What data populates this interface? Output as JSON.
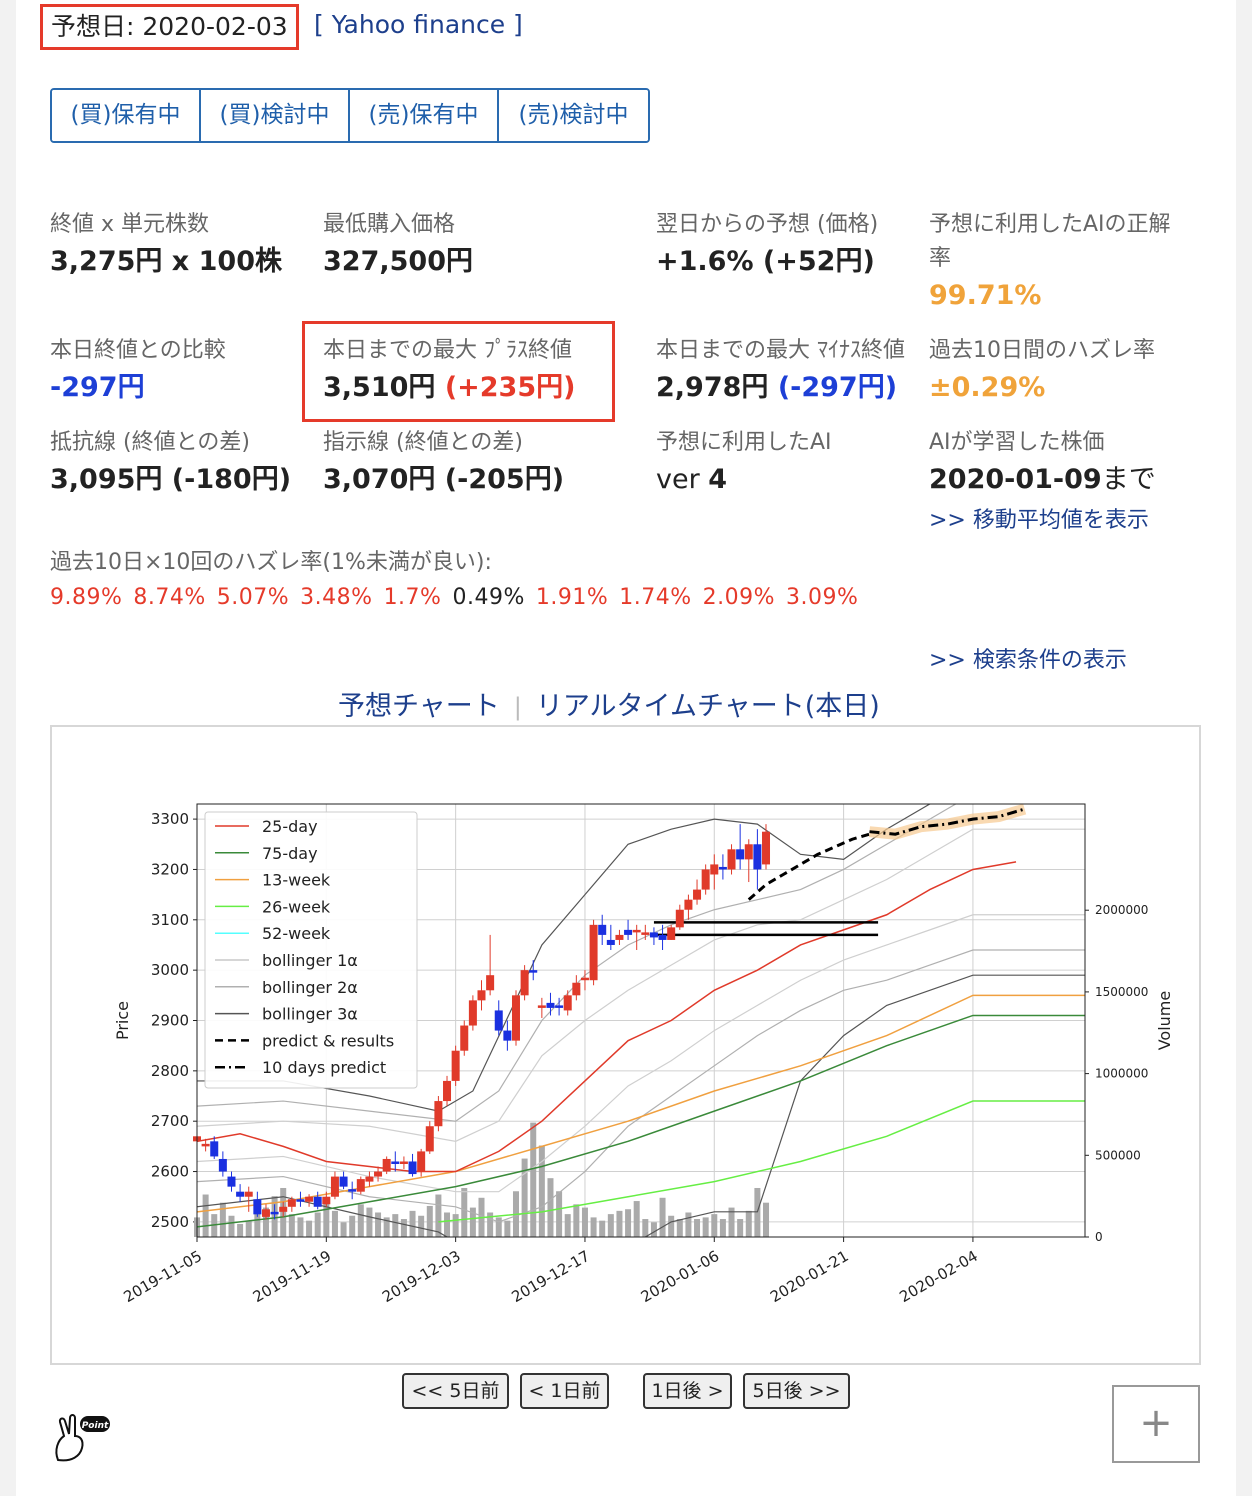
{
  "header": {
    "prediction_date": "予想日: 2020-02-03",
    "yahoo_link": "[ Yahoo finance ]"
  },
  "segments": [
    "(買)保有中",
    "(買)検討中",
    "(売)保有中",
    "(売)検討中"
  ],
  "stats": {
    "close_label": "終値 x 単元株数",
    "close_value": "3,275円 x 100株",
    "min_buy_label": "最低購入価格",
    "min_buy_value": "327,500円",
    "forecast_label": "翌日からの予想 (価格)",
    "forecast_value": "+1.6% (+52円)",
    "ai_accuracy_label": "予想に利用したAIの正解率",
    "ai_accuracy_value": "99.71%",
    "today_compare_label": "本日終値との比較",
    "today_compare_value": "-297円",
    "max_plus_label": "本日までの最大 ﾌﾟﾗｽ終値",
    "max_plus_value": "3,510円",
    "max_plus_diff": "(+235円)",
    "max_minus_label": "本日までの最大 ﾏｲﾅｽ終値",
    "max_minus_value": "2,978円",
    "max_minus_diff": "(-297円)",
    "miss_rate_label": "過去10日間のハズレ率",
    "miss_rate_value": "±0.29%",
    "resistance_label": "抵抗線 (終値との差)",
    "resistance_value": "3,095円 (-180円)",
    "support_label": "指示線 (終値との差)",
    "support_value": "3,070円 (-205円)",
    "ai_ver_label": "予想に利用したAI",
    "ai_ver_prefix": "ver ",
    "ai_ver_value": "4",
    "learned_label": "AIが学習した株価",
    "learned_value": "2020-01-09",
    "learned_suffix": "まで",
    "moving_avg_link": ">> 移動平均値を表示"
  },
  "miss_rates": {
    "label": "過去10日×10回のハズレ率(1%未満が良い):",
    "values": [
      {
        "text": "9.89%",
        "color": "#e53a2a"
      },
      {
        "text": "8.74%",
        "color": "#e53a2a"
      },
      {
        "text": "5.07%",
        "color": "#e53a2a"
      },
      {
        "text": "3.48%",
        "color": "#e53a2a"
      },
      {
        "text": "1.7%",
        "color": "#e53a2a"
      },
      {
        "text": "0.49%",
        "color": "#222222"
      },
      {
        "text": "1.91%",
        "color": "#e53a2a"
      },
      {
        "text": "1.74%",
        "color": "#e53a2a"
      },
      {
        "text": "2.09%",
        "color": "#e53a2a"
      },
      {
        "text": "3.09%",
        "color": "#e53a2a"
      }
    ]
  },
  "search_link": ">> 検索条件の表示",
  "chart_tabs": {
    "predict": "予想チャート",
    "sep": "|",
    "realtime": "リアルタイムチャート(本日)"
  },
  "chart_data": {
    "type": "candlestick",
    "ylabel": "Price",
    "y2label": "Volume",
    "ylim": [
      2470,
      3330
    ],
    "yticks": [
      2500,
      2600,
      2700,
      2800,
      2900,
      3000,
      3100,
      3200,
      3300
    ],
    "y2ticks": [
      0,
      500000,
      1000000,
      1500000,
      2000000
    ],
    "y2max": 2650000,
    "xlim": [
      0,
      103
    ],
    "xticks": [
      {
        "i": 0,
        "label": "2019-11-05"
      },
      {
        "i": 15,
        "label": "2019-11-19"
      },
      {
        "i": 30,
        "label": "2019-12-03"
      },
      {
        "i": 45,
        "label": "2019-12-17"
      },
      {
        "i": 60,
        "label": "2020-01-06"
      },
      {
        "i": 75,
        "label": "2020-01-21"
      },
      {
        "i": 90,
        "label": "2020-02-04"
      }
    ],
    "legend": [
      {
        "name": "25-day",
        "color": "#e03a2a",
        "dash": ""
      },
      {
        "name": "75-day",
        "color": "#3a8a3a",
        "dash": ""
      },
      {
        "name": "13-week",
        "color": "#f0a040",
        "dash": ""
      },
      {
        "name": "26-week",
        "color": "#66ee44",
        "dash": ""
      },
      {
        "name": "52-week",
        "color": "#55ffff",
        "dash": ""
      },
      {
        "name": "bollinger 1α",
        "color": "#c8c8c8",
        "dash": ""
      },
      {
        "name": "bollinger 2α",
        "color": "#b0b0b0",
        "dash": ""
      },
      {
        "name": "bollinger 3α",
        "color": "#555555",
        "dash": ""
      },
      {
        "name": "predict & results",
        "color": "#000000",
        "dash": "8,5"
      },
      {
        "name": "10 days predict",
        "color": "#000000",
        "dash": "10,4,2,4"
      }
    ],
    "candles": [
      [
        2660,
        2680,
        2650,
        2670
      ],
      [
        2650,
        2665,
        2640,
        2655
      ],
      [
        2660,
        2670,
        2625,
        2630
      ],
      [
        2625,
        2640,
        2590,
        2600
      ],
      [
        2590,
        2600,
        2560,
        2570
      ],
      [
        2560,
        2575,
        2540,
        2550
      ],
      [
        2550,
        2570,
        2520,
        2560
      ],
      [
        2545,
        2560,
        2510,
        2515
      ],
      [
        2510,
        2535,
        2505,
        2525
      ],
      [
        2520,
        2535,
        2505,
        2515
      ],
      [
        2520,
        2540,
        2510,
        2530
      ],
      [
        2530,
        2550,
        2520,
        2545
      ],
      [
        2545,
        2560,
        2530,
        2540
      ],
      [
        2540,
        2555,
        2530,
        2550
      ],
      [
        2550,
        2560,
        2525,
        2530
      ],
      [
        2535,
        2560,
        2530,
        2550
      ],
      [
        2550,
        2600,
        2545,
        2590
      ],
      [
        2590,
        2600,
        2565,
        2570
      ],
      [
        2565,
        2580,
        2545,
        2560
      ],
      [
        2560,
        2590,
        2555,
        2585
      ],
      [
        2580,
        2600,
        2570,
        2590
      ],
      [
        2590,
        2610,
        2580,
        2600
      ],
      [
        2600,
        2630,
        2595,
        2625
      ],
      [
        2620,
        2640,
        2600,
        2615
      ],
      [
        2615,
        2630,
        2605,
        2620
      ],
      [
        2620,
        2635,
        2590,
        2595
      ],
      [
        2600,
        2645,
        2590,
        2640
      ],
      [
        2640,
        2700,
        2635,
        2690
      ],
      [
        2690,
        2750,
        2680,
        2740
      ],
      [
        2740,
        2790,
        2730,
        2780
      ],
      [
        2780,
        2850,
        2770,
        2840
      ],
      [
        2840,
        2900,
        2830,
        2890
      ],
      [
        2890,
        2950,
        2880,
        2940
      ],
      [
        2940,
        2980,
        2920,
        2960
      ],
      [
        2960,
        3070,
        2950,
        2990
      ],
      [
        2920,
        2940,
        2870,
        2880
      ],
      [
        2880,
        2900,
        2840,
        2860
      ],
      [
        2860,
        2960,
        2850,
        2950
      ],
      [
        2950,
        3010,
        2940,
        3000
      ],
      [
        3000,
        3020,
        2980,
        2995
      ],
      [
        2925,
        2945,
        2905,
        2930
      ],
      [
        2935,
        2955,
        2910,
        2925
      ],
      [
        2930,
        2945,
        2910,
        2925
      ],
      [
        2920,
        2960,
        2910,
        2950
      ],
      [
        2950,
        2990,
        2940,
        2975
      ],
      [
        2980,
        3000,
        2960,
        2985
      ],
      [
        2980,
        3100,
        2970,
        3090
      ],
      [
        3090,
        3110,
        3050,
        3070
      ],
      [
        3060,
        3090,
        3040,
        3050
      ],
      [
        3060,
        3080,
        3050,
        3070
      ],
      [
        3080,
        3100,
        3060,
        3070
      ],
      [
        3075,
        3090,
        3040,
        3080
      ],
      [
        3070,
        3090,
        3060,
        3075
      ],
      [
        3075,
        3085,
        3050,
        3065
      ],
      [
        3070,
        3090,
        3040,
        3060
      ],
      [
        3060,
        3090,
        3060,
        3085
      ],
      [
        3085,
        3130,
        3080,
        3120
      ],
      [
        3120,
        3150,
        3100,
        3140
      ],
      [
        3140,
        3180,
        3130,
        3160
      ],
      [
        3160,
        3210,
        3150,
        3200
      ],
      [
        3190,
        3230,
        3160,
        3210
      ],
      [
        3205,
        3230,
        3180,
        3200
      ],
      [
        3200,
        3250,
        3190,
        3240
      ],
      [
        3240,
        3290,
        3200,
        3220
      ],
      [
        3220,
        3260,
        3175,
        3250
      ],
      [
        3250,
        3280,
        3160,
        3200
      ],
      [
        3210,
        3290,
        3200,
        3275
      ]
    ],
    "candle_x": [
      0,
      1,
      2,
      3,
      4,
      5,
      6,
      7,
      8,
      9,
      10,
      11,
      12,
      13,
      14,
      15,
      16,
      17,
      18,
      19,
      20,
      21,
      22,
      23,
      24,
      25,
      26,
      27,
      28,
      29,
      30,
      31,
      32,
      33,
      34,
      35,
      36,
      37,
      38,
      39,
      40,
      41,
      42,
      43,
      44,
      45,
      46,
      47,
      48,
      49,
      50,
      51,
      52,
      53,
      54,
      55,
      56,
      57,
      58,
      59,
      60,
      61,
      62,
      63,
      64,
      65,
      66
    ],
    "volumes": [
      120000,
      260000,
      140000,
      210000,
      130000,
      80000,
      100000,
      150000,
      180000,
      250000,
      300000,
      140000,
      120000,
      100000,
      150000,
      240000,
      160000,
      90000,
      130000,
      200000,
      180000,
      150000,
      120000,
      140000,
      110000,
      160000,
      130000,
      190000,
      260000,
      150000,
      140000,
      300000,
      180000,
      240000,
      150000,
      120000,
      100000,
      280000,
      480000,
      700000,
      560000,
      360000,
      280000,
      140000,
      200000,
      180000,
      120000,
      100000,
      140000,
      160000,
      170000,
      220000,
      110000,
      90000,
      240000,
      130000,
      110000,
      150000,
      110000,
      120000,
      140000,
      110000,
      180000,
      110000,
      160000,
      300000,
      210000
    ],
    "series": {
      "ma25": [
        [
          0,
          2660
        ],
        [
          5,
          2675
        ],
        [
          10,
          2650
        ],
        [
          15,
          2620
        ],
        [
          20,
          2610
        ],
        [
          25,
          2600
        ],
        [
          30,
          2600
        ],
        [
          35,
          2640
        ],
        [
          40,
          2700
        ],
        [
          45,
          2780
        ],
        [
          50,
          2860
        ],
        [
          55,
          2900
        ],
        [
          60,
          2960
        ],
        [
          65,
          3000
        ],
        [
          70,
          3050
        ],
        [
          75,
          3080
        ],
        [
          80,
          3110
        ],
        [
          85,
          3160
        ],
        [
          90,
          3200
        ],
        [
          95,
          3215
        ]
      ],
      "ma75": [
        [
          0,
          2490
        ],
        [
          10,
          2510
        ],
        [
          20,
          2540
        ],
        [
          30,
          2570
        ],
        [
          40,
          2610
        ],
        [
          50,
          2660
        ],
        [
          60,
          2720
        ],
        [
          70,
          2780
        ],
        [
          80,
          2850
        ],
        [
          90,
          2910
        ],
        [
          103,
          2910
        ]
      ],
      "wk13": [
        [
          0,
          2520
        ],
        [
          10,
          2540
        ],
        [
          20,
          2570
        ],
        [
          30,
          2600
        ],
        [
          40,
          2650
        ],
        [
          50,
          2700
        ],
        [
          60,
          2760
        ],
        [
          70,
          2810
        ],
        [
          80,
          2870
        ],
        [
          90,
          2950
        ],
        [
          103,
          2950
        ]
      ],
      "wk26": [
        [
          28,
          2500
        ],
        [
          40,
          2520
        ],
        [
          50,
          2550
        ],
        [
          60,
          2580
        ],
        [
          70,
          2620
        ],
        [
          80,
          2670
        ],
        [
          90,
          2740
        ],
        [
          103,
          2740
        ]
      ],
      "boll1_up": [
        [
          0,
          2690
        ],
        [
          10,
          2700
        ],
        [
          20,
          2690
        ],
        [
          30,
          2660
        ],
        [
          35,
          2700
        ],
        [
          40,
          2830
        ],
        [
          45,
          2900
        ],
        [
          50,
          2960
        ],
        [
          55,
          3010
        ],
        [
          60,
          3060
        ],
        [
          65,
          3090
        ],
        [
          70,
          3100
        ],
        [
          75,
          3140
        ],
        [
          80,
          3180
        ],
        [
          85,
          3230
        ],
        [
          90,
          3280
        ],
        [
          103,
          3280
        ]
      ],
      "boll1_lo": [
        [
          0,
          2620
        ],
        [
          10,
          2630
        ],
        [
          20,
          2590
        ],
        [
          30,
          2560
        ],
        [
          35,
          2560
        ],
        [
          40,
          2620
        ],
        [
          45,
          2690
        ],
        [
          50,
          2770
        ],
        [
          55,
          2820
        ],
        [
          60,
          2880
        ],
        [
          65,
          2930
        ],
        [
          70,
          2980
        ],
        [
          75,
          3020
        ],
        [
          80,
          3050
        ],
        [
          85,
          3080
        ],
        [
          90,
          3110
        ],
        [
          103,
          3110
        ]
      ],
      "boll2_up": [
        [
          0,
          2730
        ],
        [
          10,
          2740
        ],
        [
          20,
          2720
        ],
        [
          30,
          2700
        ],
        [
          35,
          2760
        ],
        [
          40,
          2900
        ],
        [
          45,
          2990
        ],
        [
          50,
          3050
        ],
        [
          55,
          3090
        ],
        [
          60,
          3120
        ],
        [
          65,
          3140
        ],
        [
          70,
          3160
        ],
        [
          75,
          3200
        ],
        [
          80,
          3250
        ],
        [
          85,
          3300
        ],
        [
          90,
          3350
        ],
        [
          103,
          3350
        ]
      ],
      "boll2_lo": [
        [
          0,
          2580
        ],
        [
          10,
          2590
        ],
        [
          20,
          2550
        ],
        [
          30,
          2530
        ],
        [
          35,
          2500
        ],
        [
          40,
          2530
        ],
        [
          45,
          2600
        ],
        [
          50,
          2690
        ],
        [
          55,
          2750
        ],
        [
          60,
          2810
        ],
        [
          65,
          2870
        ],
        [
          70,
          2920
        ],
        [
          75,
          2960
        ],
        [
          80,
          2980
        ],
        [
          85,
          3010
        ],
        [
          90,
          3040
        ],
        [
          103,
          3040
        ]
      ],
      "boll3_up": [
        [
          0,
          2780
        ],
        [
          10,
          2780
        ],
        [
          20,
          2750
        ],
        [
          28,
          2720
        ],
        [
          32,
          2760
        ],
        [
          40,
          3050
        ],
        [
          45,
          3150
        ],
        [
          50,
          3250
        ],
        [
          55,
          3280
        ],
        [
          60,
          3300
        ],
        [
          65,
          3290
        ],
        [
          70,
          3230
        ],
        [
          75,
          3220
        ],
        [
          80,
          3280
        ],
        [
          85,
          3330
        ],
        [
          90,
          3360
        ],
        [
          103,
          3360
        ]
      ],
      "boll3_lo": [
        [
          0,
          2530
        ],
        [
          10,
          2550
        ],
        [
          20,
          2510
        ],
        [
          28,
          2480
        ],
        [
          32,
          2440
        ],
        [
          40,
          2380
        ],
        [
          45,
          2400
        ],
        [
          50,
          2450
        ],
        [
          55,
          2500
        ],
        [
          60,
          2520
        ],
        [
          65,
          2520
        ],
        [
          70,
          2780
        ],
        [
          75,
          2870
        ],
        [
          80,
          2930
        ],
        [
          85,
          2960
        ],
        [
          90,
          2990
        ],
        [
          103,
          2990
        ]
      ],
      "predict_results": [
        [
          64,
          3140
        ],
        [
          66,
          3170
        ],
        [
          68,
          3190
        ],
        [
          70,
          3210
        ],
        [
          72,
          3230
        ],
        [
          74,
          3245
        ],
        [
          76,
          3260
        ],
        [
          78,
          3270
        ]
      ],
      "ten_day_predict": [
        [
          78,
          3275
        ],
        [
          81,
          3270
        ],
        [
          84,
          3285
        ],
        [
          87,
          3290
        ],
        [
          90,
          3300
        ],
        [
          93,
          3305
        ],
        [
          96,
          3320
        ]
      ]
    },
    "resistance_line": {
      "value": 3095,
      "from": 53,
      "to": 79
    },
    "support_line": {
      "value": 3070,
      "from": 53,
      "to": 79
    }
  },
  "nav": {
    "back5": "<< 5日前",
    "back1": "< 1日前",
    "fwd1": "1日後 >",
    "fwd5": "5日後 >>"
  },
  "plus": "+",
  "point_badge": "Point"
}
